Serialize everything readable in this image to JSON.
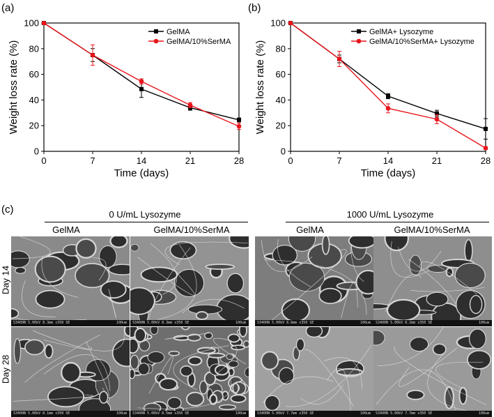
{
  "panels": {
    "a": "(a)",
    "b": "(b)",
    "c": "(c)"
  },
  "chart_data": [
    {
      "type": "line",
      "panel": "(a)",
      "xlabel": "Time (days)",
      "ylabel": "Weight loss rate (%)",
      "x": [
        0,
        7,
        14,
        21,
        28
      ],
      "xticks": [
        "0",
        "7",
        "14",
        "21",
        "28"
      ],
      "yticks": [
        "0",
        "20",
        "40",
        "60",
        "80",
        "100"
      ],
      "xlim": [
        0,
        28
      ],
      "ylim": [
        0,
        100
      ],
      "legend_position": "top-right",
      "series": [
        {
          "name": "GelMA",
          "color": "#000000",
          "marker": "square",
          "values": [
            100,
            75,
            48.5,
            34,
            24.5
          ],
          "errors": [
            0,
            5,
            6.5,
            2,
            1.5
          ]
        },
        {
          "name": "GelMA/10%SerMA",
          "color": "#e8141b",
          "marker": "circle",
          "values": [
            100,
            75,
            54.5,
            36,
            19.5
          ],
          "errors": [
            0,
            8,
            2,
            2,
            2.5
          ]
        }
      ]
    },
    {
      "type": "line",
      "panel": "(b)",
      "xlabel": "Time (days)",
      "ylabel": "Weight loss rate (%)",
      "x": [
        0,
        7,
        14,
        21,
        28
      ],
      "xticks": [
        "0",
        "7",
        "14",
        "21",
        "28"
      ],
      "yticks": [
        "0",
        "20",
        "40",
        "60",
        "80",
        "100"
      ],
      "xlim": [
        0,
        28
      ],
      "ylim": [
        0,
        100
      ],
      "legend_position": "top-right",
      "series": [
        {
          "name": "GelMA+ Lysozyme",
          "color": "#000000",
          "marker": "square",
          "values": [
            100,
            72,
            43,
            29.5,
            17.5
          ],
          "errors": [
            0,
            3,
            2,
            2.5,
            8
          ]
        },
        {
          "name": "GelMA/10%SerMA+ Lysozyme",
          "color": "#e8141b",
          "marker": "circle",
          "values": [
            100,
            72,
            33.5,
            25,
            2.5
          ],
          "errors": [
            0,
            6,
            3.5,
            3.5,
            1
          ]
        }
      ]
    }
  ],
  "sem": {
    "groups": [
      "0 U/mL  Lysozyme",
      "1000 U/mL  Lysozyme"
    ],
    "columns": [
      "GelMA",
      "GelMA/10%SerMA",
      "GelMA",
      "GelMA/10%SerMA"
    ],
    "rows": [
      "Day 14",
      "Day 28"
    ],
    "footers": [
      "S3400N 5.00kV 8.3mm x350 SE",
      "S3400N 5.00kV 8.3mm x350 SE",
      "S3400N 5.00kV 8.6mm x350 SE",
      "S3400N 5.00kV 8.2mm x350 SE",
      "S3400N 5.00kV 8.1mm x350 SE",
      "S3400N 5.00kV 8.5mm x350 SE",
      "S3400N 5.00kV 7.7mm x350 SE",
      "S3400N 5.00kV 7.7mm x350 SE"
    ],
    "scale": "100um"
  }
}
